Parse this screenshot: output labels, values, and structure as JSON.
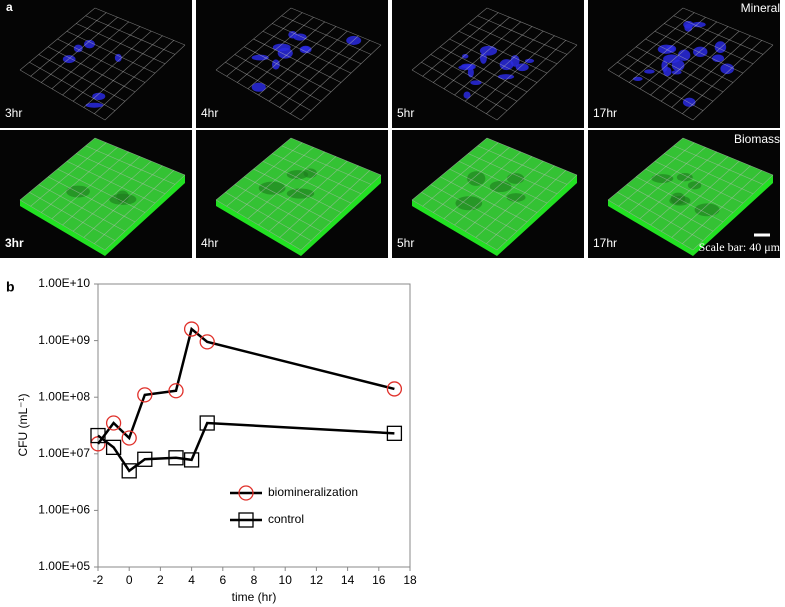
{
  "figure": {
    "panels": [
      "a",
      "b"
    ],
    "mineral_row": {
      "label": "Mineral",
      "times": [
        "3hr",
        "4hr",
        "5hr",
        "17hr"
      ]
    },
    "biomass_row": {
      "label": "Biomass",
      "times": [
        "3hr",
        "4hr",
        "5hr",
        "17hr"
      ]
    },
    "scale_bar": "Scale bar: 40 μm"
  },
  "chart_data": {
    "type": "line",
    "xlabel": "time (hr)",
    "ylabel": "CFU (mL⁻¹)",
    "x": [
      -2,
      -1,
      0,
      1,
      3,
      4,
      5,
      17
    ],
    "series": [
      {
        "name": "biomineralization",
        "color": "#e0302a",
        "marker": "circle",
        "values": [
          15000000,
          35000000,
          19000000,
          110000000,
          130000000,
          1600000000,
          950000000,
          140000000
        ]
      },
      {
        "name": "control",
        "color": "#000000",
        "marker": "square",
        "values": [
          21000000,
          13000000,
          5000000,
          8000000,
          8500000,
          7800000,
          35000000,
          23000000
        ]
      }
    ],
    "xlim": [
      -2,
      18
    ],
    "xticks": [
      -2,
      0,
      2,
      4,
      6,
      8,
      10,
      12,
      14,
      16,
      18
    ],
    "ylim": [
      100000,
      10000000000
    ],
    "log_y": true,
    "yticks": [
      {
        "value": 100000,
        "label": "1.00E+05"
      },
      {
        "value": 1000000,
        "label": "1.00E+06"
      },
      {
        "value": 10000000,
        "label": "1.00E+07"
      },
      {
        "value": 100000000,
        "label": "1.00E+08"
      },
      {
        "value": 1000000000,
        "label": "1.00E+09"
      },
      {
        "value": 10000000000,
        "label": "1.00E+10"
      }
    ],
    "legend": "center"
  }
}
